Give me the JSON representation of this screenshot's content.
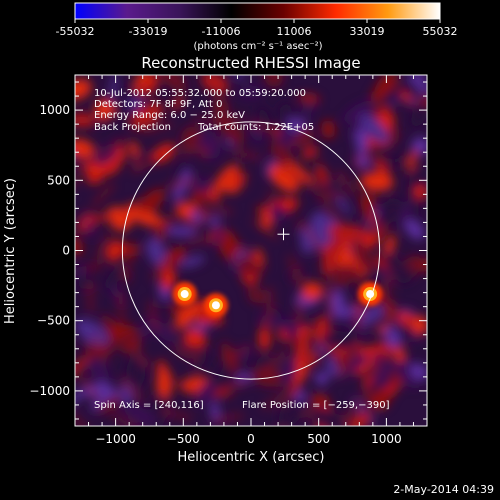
{
  "colorbar": {
    "ticks": [
      "-55032",
      "-33019",
      "-11006",
      "11006",
      "33019",
      "55032"
    ],
    "units": "(photons cm⁻² s⁻¹ asec⁻²)",
    "range": [
      -55032,
      55032
    ],
    "colormap": [
      "#0000ff",
      "#5a1a8c",
      "#3a145a",
      "#000000",
      "#6a0000",
      "#ff2a00",
      "#ff9a10",
      "#ffffff"
    ]
  },
  "chart_data": {
    "type": "heatmap",
    "title": "Reconstructed RHESSI Image",
    "xlabel": "Heliocentric X (arcsec)",
    "ylabel": "Heliocentric Y (arcsec)",
    "xlim": [
      -1300,
      1300
    ],
    "ylim": [
      -1250,
      1250
    ],
    "xticks": [
      -1000,
      -500,
      0,
      500,
      1000
    ],
    "yticks": [
      -1000,
      -500,
      0,
      500,
      1000
    ],
    "xtick_labels": [
      "−1000",
      "−500",
      "0",
      "500",
      "1000"
    ],
    "ytick_labels": [
      "−1000",
      "−500",
      "0",
      "500",
      "1000"
    ],
    "annotations": [
      "10-Jul-2012 05:55:32.000 to 05:59:20.000",
      "Detectors: 7F 8F 9F, Att 0",
      "Energy Range: 6.0 − 25.0 keV",
      "Back Projection",
      "Total counts: 1.22E+05"
    ],
    "footer_left": "Spin Axis = [240,116]",
    "footer_right": "Flare Position = [−259,−390]",
    "spin_axis": [
      240,
      116
    ],
    "solar_limb_radius": 950,
    "bright_sources": [
      {
        "x": -490,
        "y": -310
      },
      {
        "x": -259,
        "y": -390
      },
      {
        "x": 880,
        "y": -310
      }
    ]
  },
  "timestamp": "2-May-2014 04:39"
}
